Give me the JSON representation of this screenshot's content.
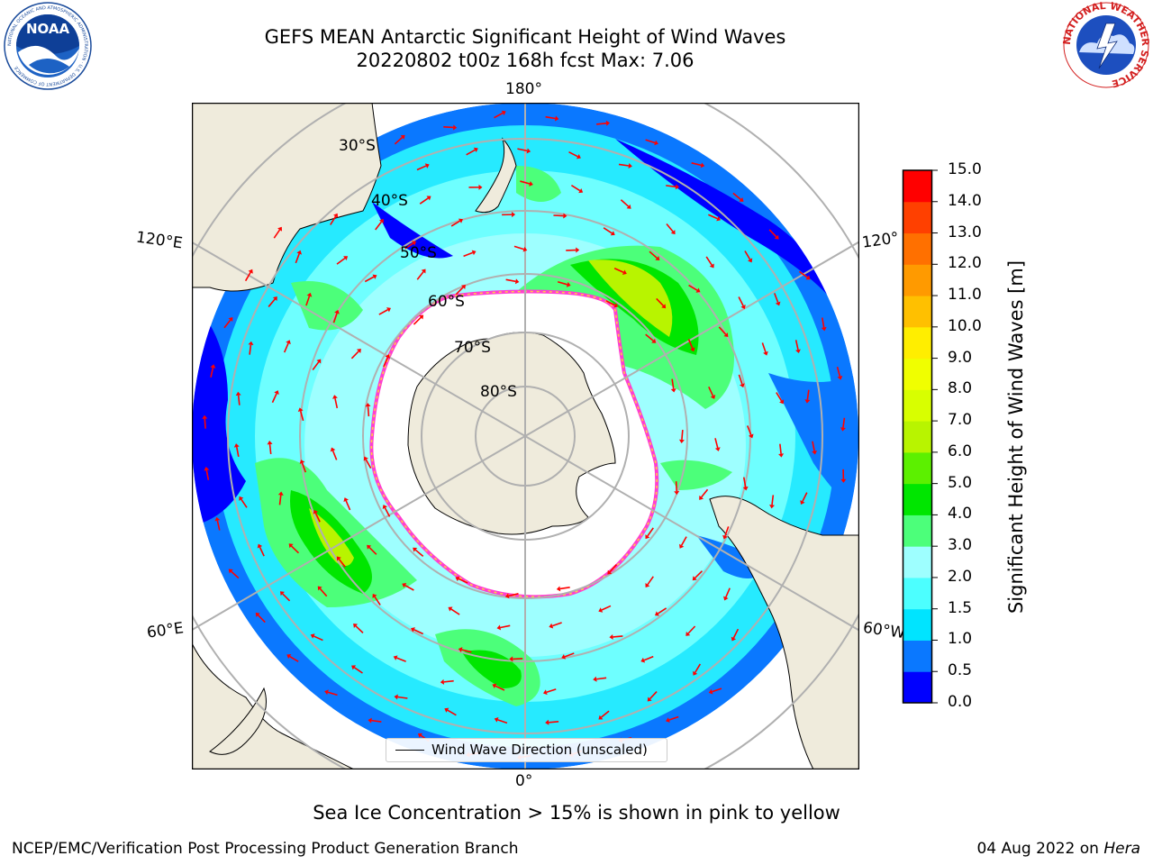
{
  "title": {
    "line1": "GEFS MEAN Antarctic Significant Height of Wind Waves",
    "line2": "20220802 t00z 168h fcst   Max: 7.06"
  },
  "map": {
    "projection": "south-polar-stereographic",
    "meridian_labels": {
      "top": "180°",
      "bottom": "0°",
      "upper_left": "120°E",
      "upper_right": "120°",
      "lower_left": "60°E",
      "lower_right": "60°W"
    },
    "latitude_labels": [
      "30°S",
      "40°S",
      "50°S",
      "60°S",
      "70°S",
      "80°S"
    ],
    "legend_label": "Wind Wave Direction (unscaled)",
    "arrow_color": "#ff0000",
    "land_color": "#efebdc",
    "ice_edge_colors": [
      "#ff3fd0",
      "#ffd23f"
    ]
  },
  "colorbar": {
    "label": "Significant Height of Wind Waves [m]",
    "ticks": [
      "0.0",
      "0.5",
      "1.0",
      "1.5",
      "2.0",
      "3.0",
      "4.0",
      "5.0",
      "6.0",
      "7.0",
      "8.0",
      "9.0",
      "10.0",
      "11.0",
      "12.0",
      "13.0",
      "14.0",
      "15.0"
    ],
    "colors": [
      "#0000ff",
      "#0a78ff",
      "#00e4ff",
      "#4cffff",
      "#9effff",
      "#4cff7a",
      "#00e600",
      "#5cf000",
      "#b8f400",
      "#d8ff00",
      "#f0ff00",
      "#ffee00",
      "#ffc000",
      "#ff9a00",
      "#ff7000",
      "#ff4000",
      "#ff0000"
    ]
  },
  "footer": {
    "note": "Sea Ice Concentration > 15% is shown in pink to yellow",
    "credit": "NCEP/EMC/Verification Post Processing Product Generation Branch",
    "date_prefix": "04 Aug 2022 on ",
    "host": "Hera"
  },
  "logos": {
    "noaa": {
      "text": "NOAA",
      "ring_text": "NATIONAL OCEANIC AND ATMOSPHERIC ADMINISTRATION · U.S. DEPARTMENT OF COMMERCE"
    },
    "nws": {
      "ring_text": "NATIONAL WEATHER SERVICE"
    }
  }
}
